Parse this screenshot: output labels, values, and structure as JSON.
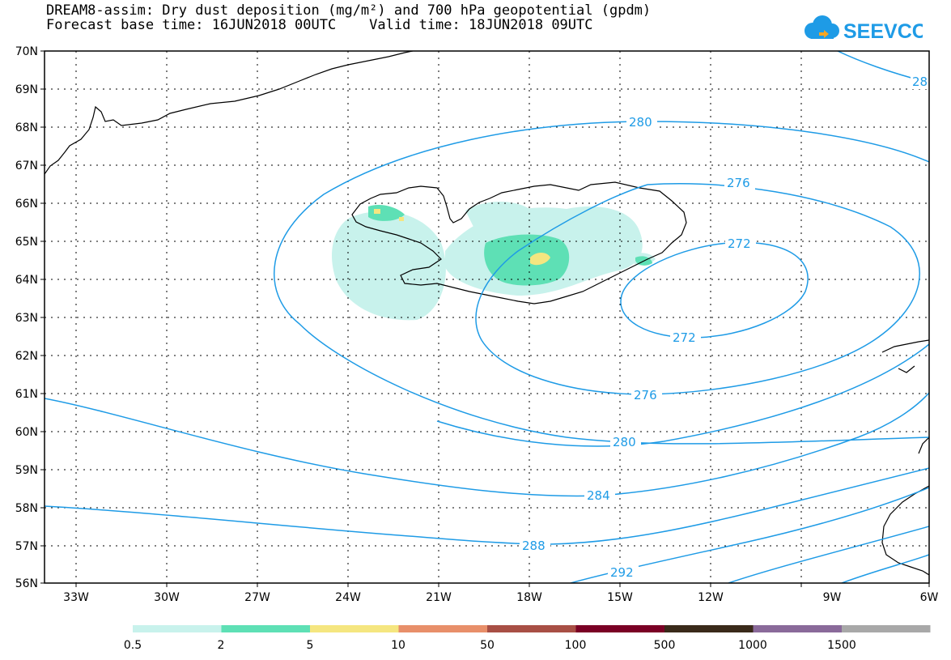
{
  "header": {
    "title_line1": "DREAM8-assim: Dry dust deposition (mg/m²) and 700 hPa geopotential (gpdm)",
    "title_line2": "Forecast base time: 16JUN2018 00UTC    Valid time: 18JUN2018 09UTC"
  },
  "logo": {
    "text": "SEEVCCC",
    "color": "#1e9be6"
  },
  "map": {
    "lat_labels": [
      "70N",
      "69N",
      "68N",
      "67N",
      "66N",
      "65N",
      "64N",
      "63N",
      "62N",
      "61N",
      "60N",
      "59N",
      "58N",
      "57N",
      "56N"
    ],
    "lon_labels": [
      "33W",
      "30W",
      "27W",
      "24W",
      "21W",
      "18W",
      "15W",
      "12W",
      "9W",
      "6W"
    ],
    "contour_color": "#1e9be6",
    "coast_color": "#000000",
    "grid": true,
    "contour_labels": [
      "280",
      "276",
      "272",
      "272",
      "276",
      "280",
      "284",
      "288",
      "292",
      "28"
    ]
  },
  "legend": {
    "colors": [
      "#c8f2ec",
      "#5ee0b5",
      "#f5e680",
      "#e88f6a",
      "#a84f45",
      "#7a0025",
      "#3a2a1a",
      "#8a6a9a",
      "#a8a8a8"
    ],
    "labels": [
      "0.5",
      "2",
      "5",
      "10",
      "50",
      "100",
      "500",
      "1000",
      "1500"
    ]
  }
}
